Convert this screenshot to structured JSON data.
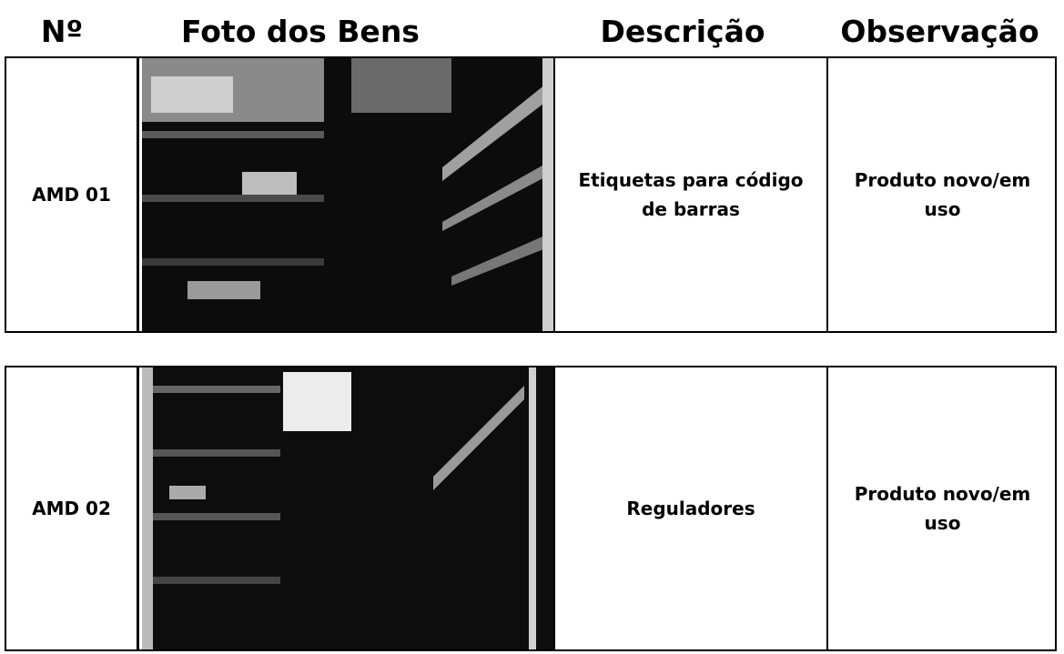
{
  "header": {
    "columns": [
      "Nº",
      "Foto dos Bens",
      "Descrição",
      "Observação"
    ]
  },
  "rows": [
    {
      "id": "AMD 01",
      "description": "Etiquetas para código de barras",
      "observation": "Produto novo/em uso"
    },
    {
      "id": "AMD 02",
      "description": "Reguladores",
      "observation": "Produto novo/em uso"
    }
  ]
}
